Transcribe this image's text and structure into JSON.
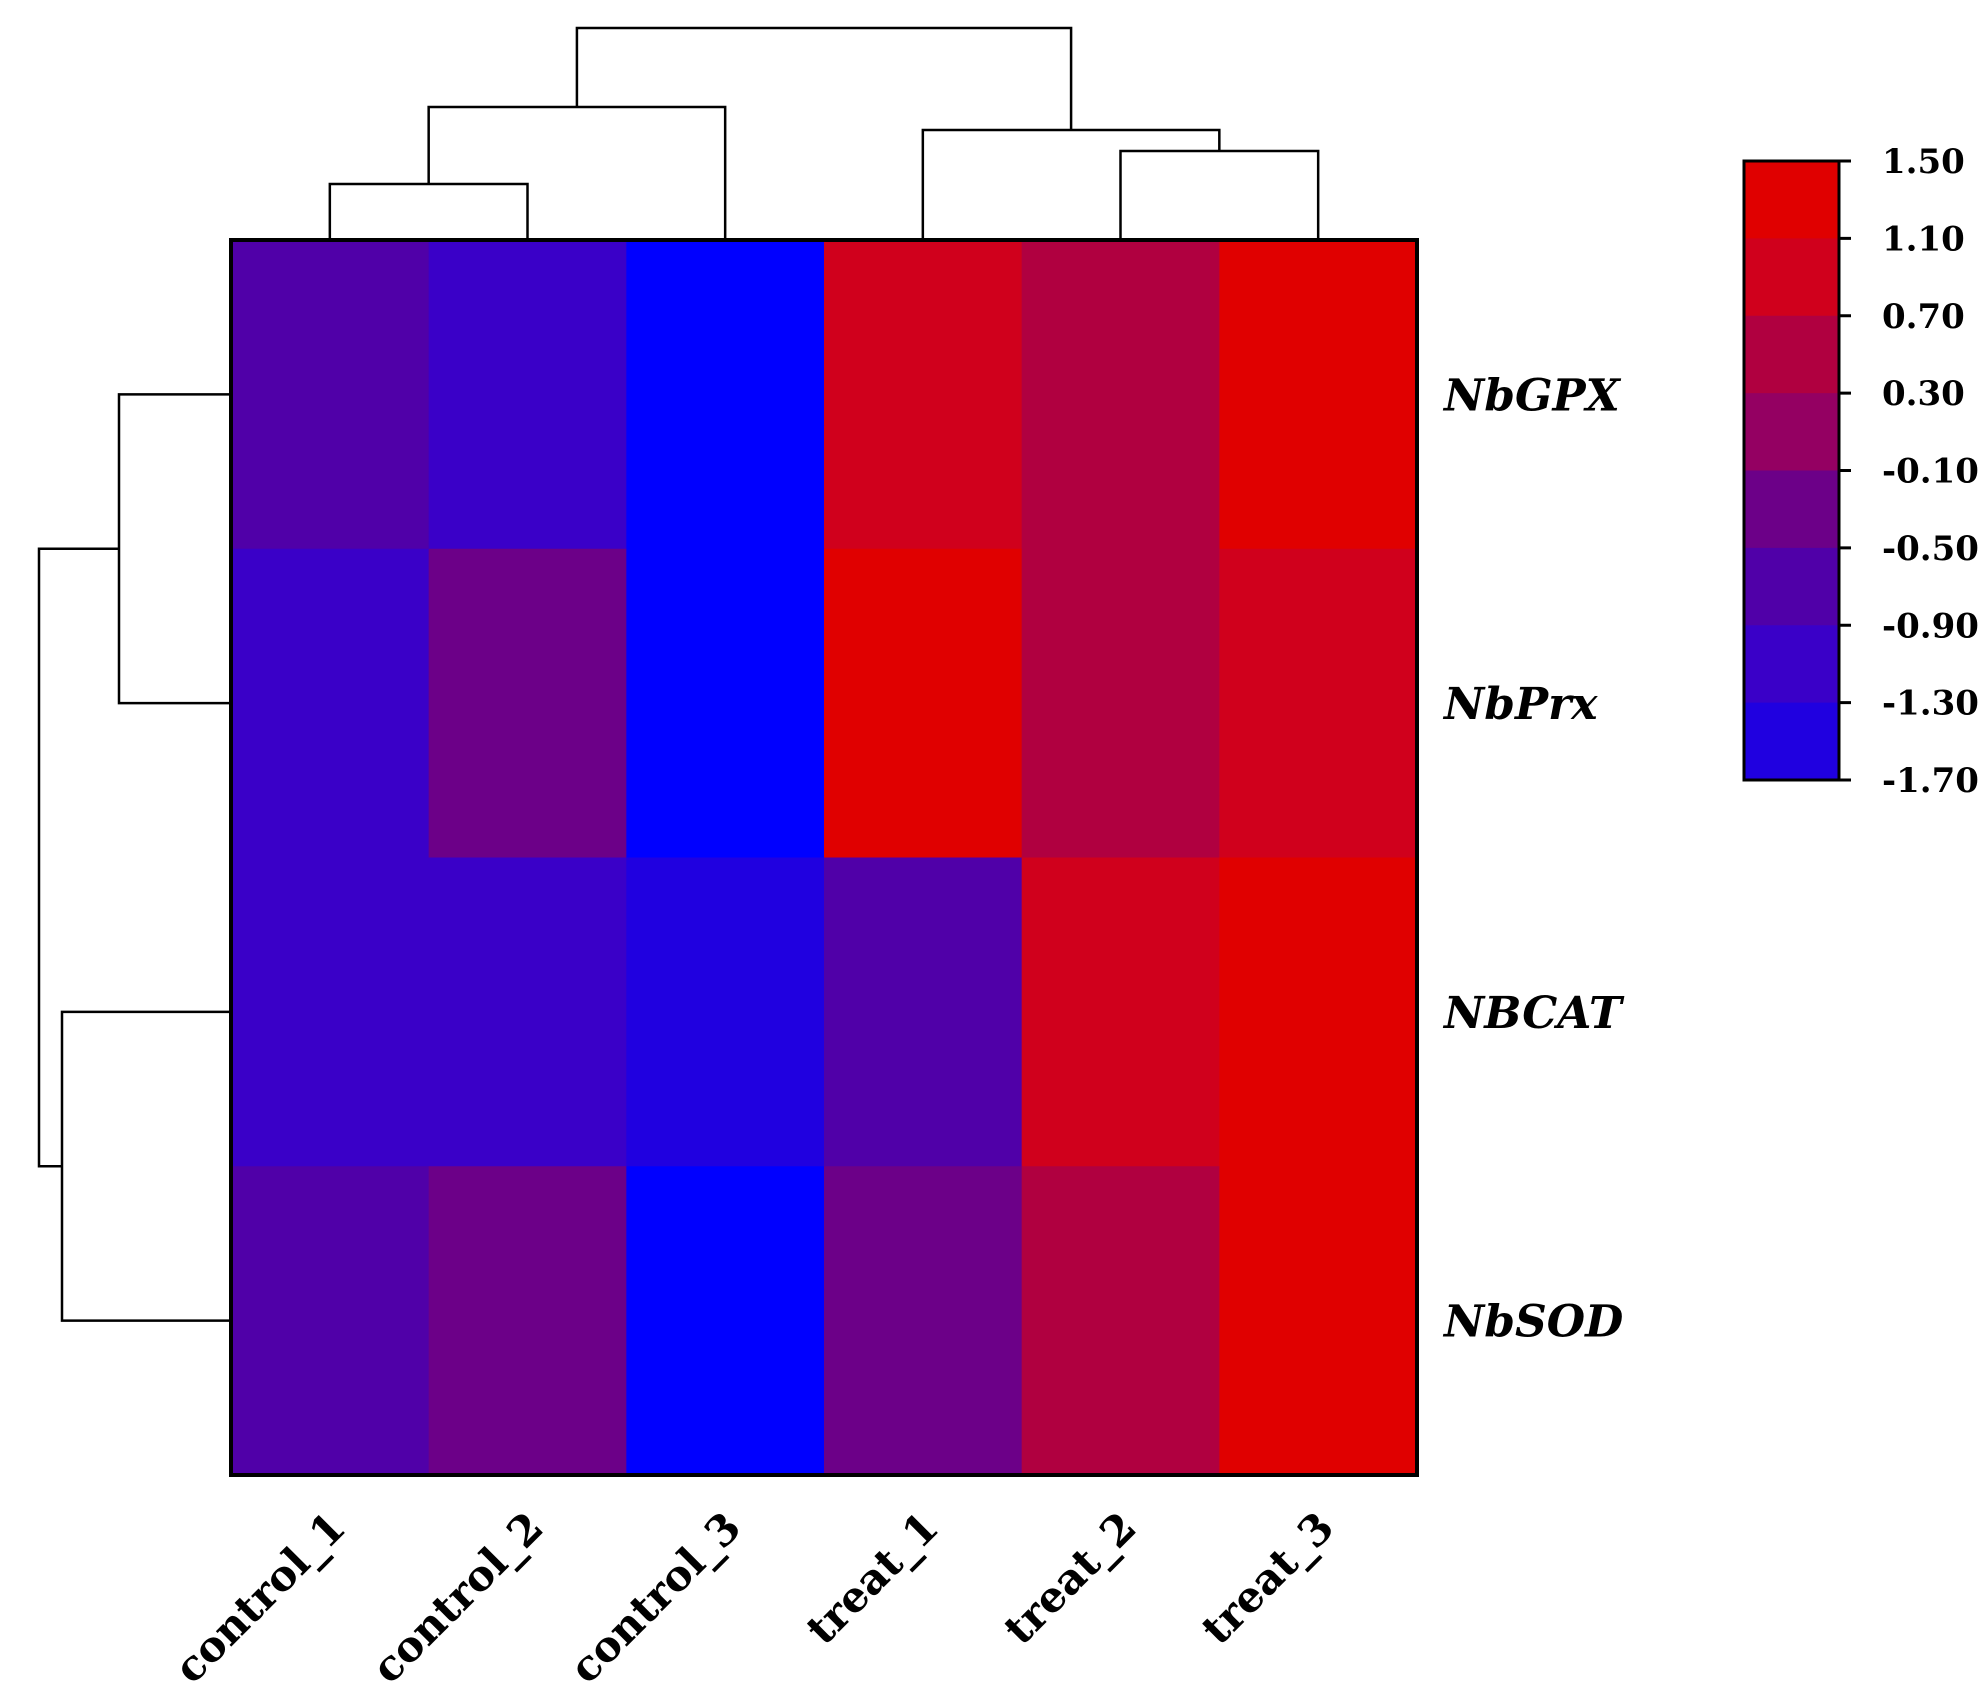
{
  "chart_data": {
    "type": "heatmap",
    "title": "",
    "columns": [
      "control_1",
      "control_2",
      "control_3",
      "treat_1",
      "treat_2",
      "treat_3"
    ],
    "row_groups": [
      "NbGPX",
      "NbPrx",
      "NBCAT",
      "NbSOD"
    ],
    "row_group_sizes": [
      5,
      5,
      5,
      5
    ],
    "values": [
      [
        -0.35,
        -0.75,
        -1.7,
        0.9,
        0.55,
        1.25
      ],
      [
        -0.35,
        -0.75,
        -1.7,
        0.9,
        0.55,
        1.25
      ],
      [
        -0.35,
        -0.75,
        -1.7,
        0.9,
        0.55,
        1.25
      ],
      [
        -0.35,
        -0.75,
        -1.7,
        0.9,
        0.55,
        1.25
      ],
      [
        -0.35,
        -0.75,
        -1.7,
        0.9,
        0.55,
        1.25
      ],
      [
        -0.8,
        -0.05,
        -1.7,
        1.3,
        0.55,
        0.95
      ],
      [
        -0.8,
        -0.05,
        -1.7,
        1.3,
        0.55,
        0.95
      ],
      [
        -0.8,
        -0.05,
        -1.7,
        1.3,
        0.55,
        0.95
      ],
      [
        -0.8,
        -0.05,
        -1.7,
        1.3,
        0.55,
        0.95
      ],
      [
        -0.8,
        -0.05,
        -1.7,
        1.45,
        0.75,
        1.0
      ],
      [
        -0.8,
        -0.8,
        -1.15,
        -0.55,
        1.05,
        1.45
      ],
      [
        -0.8,
        -0.8,
        -1.15,
        -0.55,
        1.05,
        1.45
      ],
      [
        -0.8,
        -0.8,
        -1.05,
        -0.45,
        1.1,
        1.35
      ],
      [
        -0.8,
        -0.8,
        -1.15,
        -0.55,
        1.05,
        1.45
      ],
      [
        -0.8,
        -0.8,
        -1.15,
        -0.55,
        1.05,
        1.45
      ],
      [
        -0.45,
        -0.05,
        -1.7,
        -0.05,
        0.5,
        1.45
      ],
      [
        -0.45,
        -0.05,
        -1.7,
        -0.05,
        0.5,
        1.45
      ],
      [
        -0.3,
        -0.05,
        -1.7,
        -0.05,
        0.5,
        1.3
      ],
      [
        -0.45,
        -0.05,
        -1.7,
        -0.05,
        0.6,
        1.45
      ],
      [
        -0.45,
        -0.05,
        -1.7,
        -0.05,
        0.6,
        1.45
      ]
    ],
    "color_scale": {
      "min": -1.7,
      "max": 1.5,
      "ticks": [
        "1.50",
        "1.10",
        "0.70",
        "0.30",
        "-0.10",
        "-0.50",
        "-0.90",
        "-1.30",
        "-1.70"
      ],
      "colors": [
        "#0000ff",
        "#2000e0",
        "#3a00c8",
        "#5000a8",
        "#6c0088",
        "#940062",
        "#b00040",
        "#d0001c",
        "#e00000"
      ]
    },
    "column_dendrogram": "((control_1,control_2),control_3),(treat_1,(treat_2,treat_3))",
    "row_dendrogram": "(NbGPX,NbPrx),(NBCAT,NbSOD)"
  }
}
